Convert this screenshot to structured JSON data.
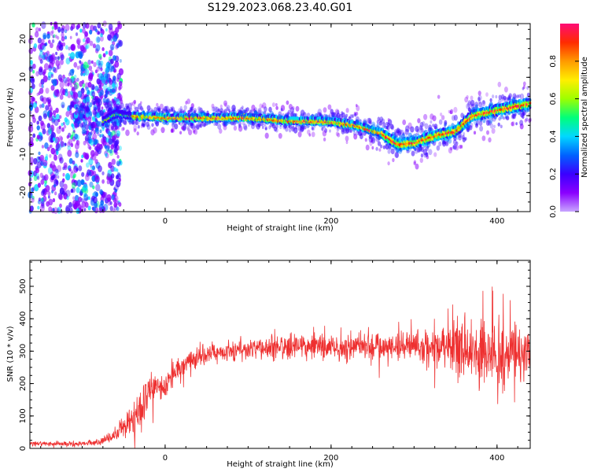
{
  "title": "S129.2023.068.23.40.G01",
  "colormap": [
    "#c8a6ff",
    "#8a00ff",
    "#3a00ff",
    "#0062ff",
    "#00d8ff",
    "#00ff7a",
    "#9dff00",
    "#ffee00",
    "#ff9a00",
    "#ff2b00",
    "#ff0c76"
  ],
  "chart_data": [
    {
      "type": "heatmap",
      "xlabel": "Height of straight line (km)",
      "ylabel": "Frequency (Hz)",
      "xlim": [
        -163,
        440
      ],
      "ylim": [
        -25,
        24
      ],
      "xticks": [
        0,
        200,
        400
      ],
      "yticks": [
        -20,
        -10,
        0,
        10,
        20
      ],
      "colorbar": {
        "label": "Normalized spectral amplitude",
        "range": [
          0,
          1
        ],
        "ticks": [
          0.0,
          0.2,
          0.4,
          0.6,
          0.8
        ]
      },
      "ridge": {
        "x": [
          -100,
          -80,
          -60,
          -40,
          0,
          100,
          150,
          200,
          230,
          260,
          280,
          300,
          330,
          350,
          370,
          400,
          440
        ],
        "y": [
          -5,
          -2,
          0.5,
          0,
          -0.5,
          -0.5,
          -1.3,
          -1.5,
          -2.5,
          -4.5,
          -7.5,
          -7,
          -5,
          -4,
          0,
          1.5,
          3.2
        ]
      }
    },
    {
      "type": "line",
      "xlabel": "Height of straight line (km)",
      "ylabel": "SNR (10 * v/v)",
      "xlim": [
        -163,
        440
      ],
      "ylim": [
        0,
        580
      ],
      "xticks": [
        0,
        200,
        400
      ],
      "yticks": [
        0,
        100,
        200,
        300,
        400,
        500
      ],
      "color": "#ee3030",
      "envelope": {
        "x": [
          -163,
          -100,
          -80,
          -60,
          -50,
          -40,
          -30,
          -20,
          -10,
          0,
          10,
          30,
          50,
          80,
          100,
          150,
          200,
          250,
          300,
          340,
          360,
          380,
          400,
          420,
          440
        ],
        "mean": [
          14,
          14,
          20,
          40,
          60,
          90,
          125,
          165,
          175,
          195,
          230,
          268,
          290,
          305,
          305,
          315,
          315,
          318,
          318,
          318,
          305,
          298,
          290,
          288,
          300
        ],
        "noise": [
          5,
          5,
          7,
          15,
          25,
          40,
          55,
          50,
          35,
          30,
          30,
          25,
          22,
          22,
          25,
          32,
          32,
          35,
          38,
          50,
          75,
          95,
          85,
          75,
          40
        ]
      }
    }
  ]
}
